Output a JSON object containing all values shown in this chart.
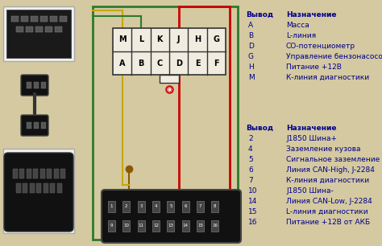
{
  "bg_color": "#d4c9a0",
  "connector_top_labels": [
    "M",
    "L",
    "K",
    "J",
    "H",
    "G"
  ],
  "connector_bot_labels": [
    "A",
    "B",
    "C",
    "D",
    "E",
    "F"
  ],
  "obd2_top_pins": [
    "1",
    "2",
    "3",
    "4",
    "5",
    "6",
    "7",
    "8"
  ],
  "obd2_bot_pins": [
    "9",
    "10",
    "11",
    "12",
    "13",
    "14",
    "15",
    "16"
  ],
  "table1_title_col1": "Вывод",
  "table1_title_col2": "Назначение",
  "table1_rows": [
    [
      "A",
      "Масса"
    ],
    [
      "B",
      "L-линия"
    ],
    [
      "D",
      "СО-потенциометр"
    ],
    [
      "G",
      "Управление бензонасосом"
    ],
    [
      "H",
      "Питание +12В"
    ],
    [
      "M",
      "К-линия диагностики"
    ]
  ],
  "table2_title_col1": "Вывод",
  "table2_title_col2": "Назначение",
  "table2_rows": [
    [
      "2",
      "J1850 Шина+"
    ],
    [
      "4",
      "Заземление кузова"
    ],
    [
      "5",
      "Сигнальное заземление"
    ],
    [
      "6",
      "Линия CAN-High, J-2284"
    ],
    [
      "7",
      "К-линия диагностики"
    ],
    [
      "10",
      "J1850 Шина-"
    ],
    [
      "14",
      "Линия CAN-Low, J-2284"
    ],
    [
      "15",
      "L-линия диагностики"
    ],
    [
      "16",
      "Питание +12В от АКБ"
    ]
  ],
  "wire_green": "#2d7a2d",
  "wire_red": "#cc0000",
  "wire_yellow": "#c8a800",
  "wire_brown": "#8b5a00",
  "connector_fill": "#f0ece0",
  "text_color": "#00008b",
  "obd2_fill": "#1a1a1a"
}
